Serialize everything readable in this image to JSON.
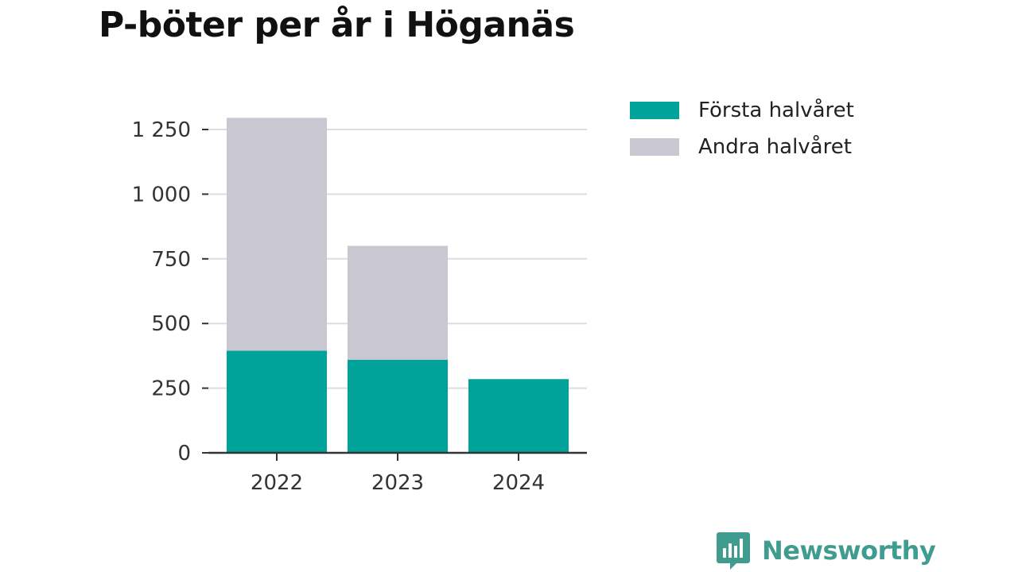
{
  "chart_data": {
    "type": "bar",
    "stacked": true,
    "title": "P-böter per år i Höganäs",
    "xlabel": "",
    "ylabel": "",
    "categories": [
      "2022",
      "2023",
      "2024"
    ],
    "series": [
      {
        "name": "Första halvåret",
        "values": [
          395,
          360,
          285
        ],
        "color": "#00a39a"
      },
      {
        "name": "Andra halvåret",
        "values": [
          900,
          440,
          0
        ],
        "color": "#c8c7d2"
      }
    ],
    "ylim": [
      0,
      1250
    ],
    "yticks": [
      0,
      250,
      500,
      750,
      1000,
      1250
    ],
    "ytick_labels": [
      "0",
      "250",
      "500",
      "750",
      "1 000",
      "1 250"
    ],
    "grid": true,
    "legend_position": "right"
  },
  "brand": {
    "name": "Newsworthy",
    "icon": "bar-chart-speech-bubble-icon",
    "color": "#3f9c8f"
  }
}
